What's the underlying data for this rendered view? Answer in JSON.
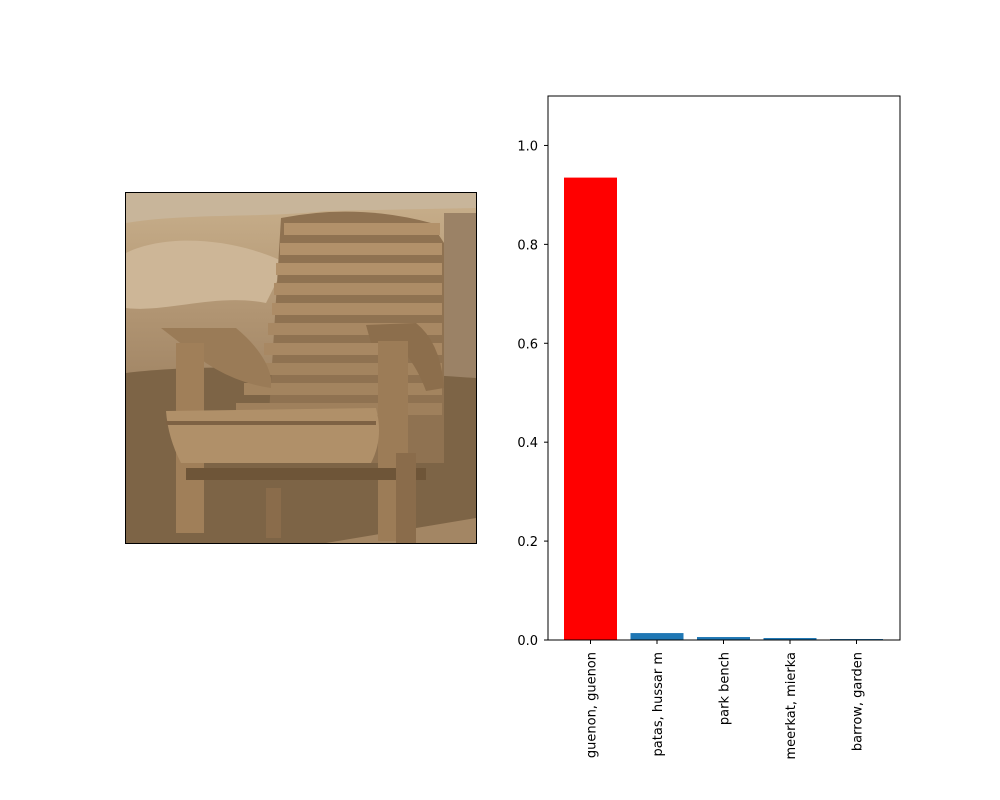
{
  "photo": {
    "subject": "wooden-adirondack-chair",
    "tone": "sepia",
    "colors": {
      "sky": "#d9c2a2",
      "grass": "#8a7052",
      "wood": "#a98961",
      "wood_dark": "#6e5538",
      "wall": "#9b8266"
    }
  },
  "chart_data": {
    "type": "bar",
    "categories": [
      "guenon, guenon",
      "patas, hussar m",
      "park bench",
      "meerkat, mierka",
      "barrow, garden"
    ],
    "values": [
      0.935,
      0.014,
      0.006,
      0.004,
      0.002
    ],
    "bar_colors": [
      "#ff0000",
      "#1f77b4",
      "#1f77b4",
      "#1f77b4",
      "#1f77b4"
    ],
    "ylim": [
      0,
      1.1
    ],
    "yticks": [
      "0.0",
      "0.2",
      "0.4",
      "0.6",
      "0.8",
      "1.0"
    ],
    "title": "",
    "xlabel": "",
    "ylabel": "",
    "grid": false
  }
}
